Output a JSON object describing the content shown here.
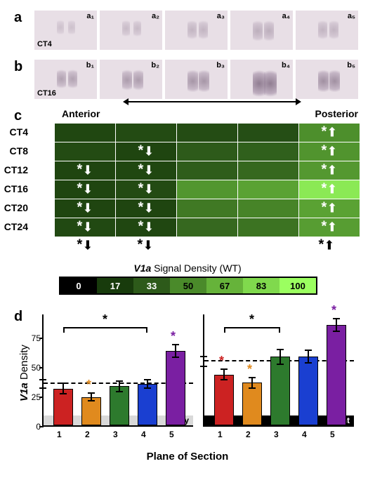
{
  "panels": {
    "a": {
      "label": "a",
      "ct": "CT4",
      "subs": [
        "a₁",
        "a₂",
        "a₃",
        "a₄",
        "a₅"
      ],
      "blob_opacity": [
        0.25,
        0.3,
        0.35,
        0.4,
        0.35
      ],
      "blob_scale": [
        0.7,
        0.8,
        0.9,
        1.0,
        0.9
      ]
    },
    "b": {
      "label": "b",
      "ct": "CT16",
      "subs": [
        "b₁",
        "b₂",
        "b₃",
        "b₄",
        "b₅"
      ],
      "blob_opacity": [
        0.5,
        0.55,
        0.6,
        0.8,
        0.65
      ],
      "blob_scale": [
        0.9,
        1.0,
        1.1,
        1.3,
        1.1
      ]
    }
  },
  "heatmap": {
    "panel_label": "c",
    "anterior_label": "Anterior",
    "posterior_label": "Posterior",
    "row_labels": [
      "CT4",
      "CT8",
      "CT12",
      "CT16",
      "CT20",
      "CT24"
    ],
    "values": [
      [
        23,
        25,
        26,
        27,
        52
      ],
      [
        25,
        22,
        33,
        35,
        54
      ],
      [
        22,
        23,
        34,
        38,
        56
      ],
      [
        22,
        25,
        55,
        60,
        90
      ],
      [
        22,
        22,
        44,
        48,
        60
      ],
      [
        24,
        23,
        38,
        42,
        58
      ]
    ],
    "markers": [
      [
        null,
        null,
        null,
        null,
        {
          "star": true,
          "dir": "up"
        }
      ],
      [
        null,
        {
          "star": true,
          "dir": "down"
        },
        null,
        null,
        {
          "star": true,
          "dir": "up"
        }
      ],
      [
        {
          "star": true,
          "dir": "down"
        },
        {
          "star": true,
          "dir": "down"
        },
        null,
        null,
        {
          "star": true,
          "dir": "up"
        }
      ],
      [
        {
          "star": true,
          "dir": "down"
        },
        {
          "star": true,
          "dir": "down"
        },
        null,
        null,
        {
          "star": true,
          "dir": "up"
        }
      ],
      [
        {
          "star": true,
          "dir": "down"
        },
        {
          "star": true,
          "dir": "down"
        },
        null,
        null,
        {
          "star": true,
          "dir": "up"
        }
      ],
      [
        {
          "star": true,
          "dir": "down"
        },
        {
          "star": true,
          "dir": "down"
        },
        null,
        null,
        {
          "star": true,
          "dir": "up"
        }
      ]
    ],
    "bottom_markers": [
      {
        "star": true,
        "dir": "down"
      },
      {
        "star": true,
        "dir": "down"
      },
      null,
      null,
      {
        "star": true,
        "dir": "up"
      }
    ],
    "color_scale": {
      "min_color": "#000000",
      "max_color": "#7fff3f",
      "stops": [
        {
          "v": 0,
          "c": "#000000",
          "tc": "#ffffff"
        },
        {
          "v": 17,
          "c": "#183b0c",
          "tc": "#ffffff"
        },
        {
          "v": 33,
          "c": "#2d5a1a",
          "tc": "#ffffff"
        },
        {
          "v": 50,
          "c": "#4a8a2a",
          "tc": "#000000"
        },
        {
          "v": 67,
          "c": "#66b33a",
          "tc": "#000000"
        },
        {
          "v": 83,
          "c": "#80d94d",
          "tc": "#000000"
        },
        {
          "v": 100,
          "c": "#9bff60",
          "tc": "#000000"
        }
      ]
    },
    "legend_title_prefix": "V1a",
    "legend_title_suffix": " Signal Density (WT)"
  },
  "barcharts": {
    "panel_label": "d",
    "ylabel_prefix": "V1a",
    "ylabel_suffix": " Density",
    "xlabel": "Plane of Section",
    "bar_colors": [
      "#cc2222",
      "#e08a1e",
      "#2d7a2d",
      "#1a3fd1",
      "#7a1fa2"
    ],
    "yticks": [
      0,
      25,
      50,
      75
    ],
    "ylim": [
      0,
      95
    ],
    "x_categories": [
      "1",
      "2",
      "3",
      "4",
      "5"
    ],
    "day": {
      "label": "Day",
      "bg": "#d9d9d9",
      "fg": "#000000",
      "mean_line": 35,
      "mean_err": 4,
      "values": [
        31,
        24,
        33,
        35,
        63
      ],
      "errs": [
        5,
        4,
        5,
        4,
        6
      ],
      "sig_stars": [
        null,
        "#e08a1e",
        null,
        null,
        "#7a1fa2"
      ],
      "bracket": {
        "from": 1,
        "to": 4,
        "y": 82,
        "star": "#000000"
      }
    },
    "night": {
      "label": "Night",
      "bg": "#000000",
      "fg": "#ffffff",
      "mean_line": 54,
      "mean_err": 5,
      "values": [
        43,
        36,
        58,
        58,
        85
      ],
      "errs": [
        5,
        5,
        7,
        6,
        6
      ],
      "sig_stars": [
        "#cc2222",
        "#e08a1e",
        null,
        null,
        "#7a1fa2"
      ],
      "bracket": {
        "from": 1,
        "to": 3,
        "y": 82,
        "star": "#000000"
      }
    }
  }
}
